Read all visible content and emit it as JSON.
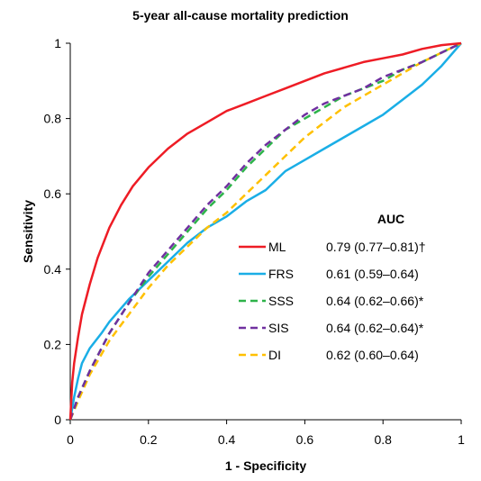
{
  "chart_data": {
    "type": "line",
    "title": "5-year all-cause mortality prediction",
    "xlabel": "1 - Specificity",
    "ylabel": "Sensitivity",
    "xlim": [
      0,
      1
    ],
    "ylim": [
      0,
      1
    ],
    "x_ticks": [
      "0",
      "0.2",
      "0.4",
      "0.6",
      "0.8",
      "1"
    ],
    "y_ticks": [
      "0",
      "0.2",
      "0.4",
      "0.6",
      "0.8",
      "1"
    ],
    "grid": false,
    "legend_title": "AUC",
    "legend_position": "bottom-right",
    "series": [
      {
        "name": "ML",
        "auc": "0.79 (0.77–0.81)†",
        "color": "#ee1c25",
        "dash": "solid",
        "points": [
          [
            0,
            0
          ],
          [
            0.005,
            0.1
          ],
          [
            0.01,
            0.15
          ],
          [
            0.02,
            0.22
          ],
          [
            0.03,
            0.28
          ],
          [
            0.05,
            0.36
          ],
          [
            0.07,
            0.43
          ],
          [
            0.1,
            0.51
          ],
          [
            0.13,
            0.57
          ],
          [
            0.16,
            0.62
          ],
          [
            0.2,
            0.67
          ],
          [
            0.25,
            0.72
          ],
          [
            0.3,
            0.76
          ],
          [
            0.35,
            0.79
          ],
          [
            0.4,
            0.82
          ],
          [
            0.45,
            0.84
          ],
          [
            0.5,
            0.86
          ],
          [
            0.55,
            0.88
          ],
          [
            0.6,
            0.9
          ],
          [
            0.65,
            0.92
          ],
          [
            0.7,
            0.935
          ],
          [
            0.75,
            0.95
          ],
          [
            0.8,
            0.96
          ],
          [
            0.85,
            0.97
          ],
          [
            0.9,
            0.985
          ],
          [
            0.95,
            0.995
          ],
          [
            1,
            1
          ]
        ]
      },
      {
        "name": "FRS",
        "auc": "0.61 (0.59–0.64)",
        "color": "#1aaee6",
        "dash": "solid",
        "points": [
          [
            0,
            0
          ],
          [
            0.01,
            0.06
          ],
          [
            0.02,
            0.11
          ],
          [
            0.03,
            0.15
          ],
          [
            0.05,
            0.19
          ],
          [
            0.08,
            0.23
          ],
          [
            0.1,
            0.26
          ],
          [
            0.15,
            0.32
          ],
          [
            0.2,
            0.37
          ],
          [
            0.25,
            0.42
          ],
          [
            0.3,
            0.47
          ],
          [
            0.35,
            0.51
          ],
          [
            0.4,
            0.54
          ],
          [
            0.45,
            0.58
          ],
          [
            0.5,
            0.61
          ],
          [
            0.55,
            0.66
          ],
          [
            0.6,
            0.69
          ],
          [
            0.65,
            0.72
          ],
          [
            0.7,
            0.75
          ],
          [
            0.75,
            0.78
          ],
          [
            0.8,
            0.81
          ],
          [
            0.85,
            0.85
          ],
          [
            0.9,
            0.89
          ],
          [
            0.95,
            0.94
          ],
          [
            1,
            1
          ]
        ]
      },
      {
        "name": "SSS",
        "auc": "0.64 (0.62–0.66)*",
        "color": "#2db34a",
        "dash": "dashed",
        "points": [
          [
            0,
            0
          ],
          [
            0.02,
            0.06
          ],
          [
            0.05,
            0.13
          ],
          [
            0.1,
            0.23
          ],
          [
            0.15,
            0.31
          ],
          [
            0.2,
            0.38
          ],
          [
            0.25,
            0.44
          ],
          [
            0.3,
            0.5
          ],
          [
            0.35,
            0.56
          ],
          [
            0.4,
            0.61
          ],
          [
            0.45,
            0.67
          ],
          [
            0.5,
            0.72
          ],
          [
            0.55,
            0.77
          ],
          [
            0.6,
            0.8
          ],
          [
            0.65,
            0.83
          ],
          [
            0.7,
            0.86
          ],
          [
            0.75,
            0.88
          ],
          [
            0.8,
            0.9
          ],
          [
            0.85,
            0.93
          ],
          [
            0.9,
            0.95
          ],
          [
            0.95,
            0.975
          ],
          [
            1,
            1
          ]
        ]
      },
      {
        "name": "SIS",
        "auc": "0.64 (0.62–0.64)*",
        "color": "#7030a0",
        "dash": "dashed",
        "points": [
          [
            0,
            0
          ],
          [
            0.02,
            0.06
          ],
          [
            0.05,
            0.13
          ],
          [
            0.1,
            0.23
          ],
          [
            0.15,
            0.31
          ],
          [
            0.2,
            0.39
          ],
          [
            0.25,
            0.45
          ],
          [
            0.3,
            0.51
          ],
          [
            0.35,
            0.57
          ],
          [
            0.4,
            0.62
          ],
          [
            0.45,
            0.68
          ],
          [
            0.5,
            0.73
          ],
          [
            0.55,
            0.77
          ],
          [
            0.6,
            0.81
          ],
          [
            0.65,
            0.84
          ],
          [
            0.7,
            0.86
          ],
          [
            0.75,
            0.88
          ],
          [
            0.8,
            0.91
          ],
          [
            0.85,
            0.93
          ],
          [
            0.9,
            0.95
          ],
          [
            0.95,
            0.975
          ],
          [
            1,
            1
          ]
        ]
      },
      {
        "name": "DI",
        "auc": "0.62 (0.60–0.64)",
        "color": "#ffc000",
        "dash": "dashed",
        "points": [
          [
            0,
            0
          ],
          [
            0.02,
            0.05
          ],
          [
            0.05,
            0.12
          ],
          [
            0.1,
            0.21
          ],
          [
            0.15,
            0.28
          ],
          [
            0.2,
            0.35
          ],
          [
            0.25,
            0.41
          ],
          [
            0.3,
            0.46
          ],
          [
            0.35,
            0.51
          ],
          [
            0.4,
            0.55
          ],
          [
            0.45,
            0.6
          ],
          [
            0.5,
            0.65
          ],
          [
            0.55,
            0.7
          ],
          [
            0.6,
            0.75
          ],
          [
            0.65,
            0.79
          ],
          [
            0.7,
            0.83
          ],
          [
            0.75,
            0.86
          ],
          [
            0.8,
            0.89
          ],
          [
            0.85,
            0.92
          ],
          [
            0.9,
            0.95
          ],
          [
            0.95,
            0.975
          ],
          [
            1,
            1
          ]
        ]
      }
    ]
  }
}
